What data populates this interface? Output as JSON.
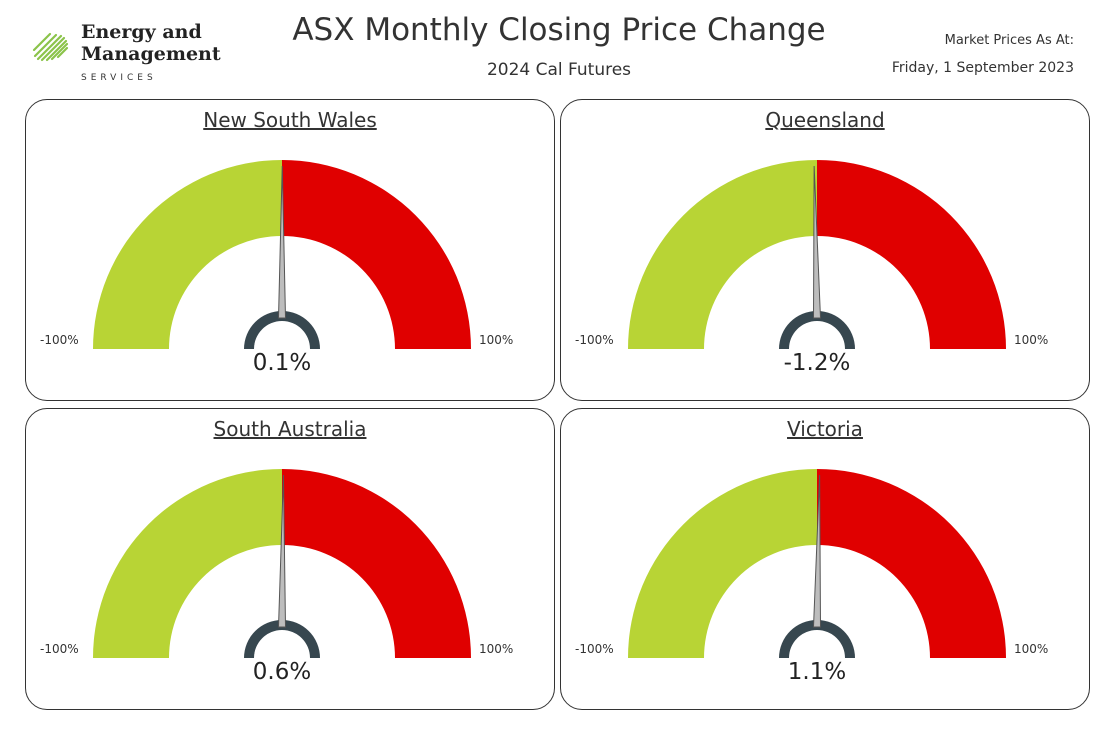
{
  "logo": {
    "line1": "Energy and",
    "line2": "Management",
    "line3": "SERVICES",
    "mark_color": "#8bc34a"
  },
  "header": {
    "title": "ASX Monthly Closing Price Change",
    "subtitle": "2024 Cal Futures",
    "as_at_label": "Market Prices As At:",
    "as_at_date": "Friday, 1 September 2023"
  },
  "colors": {
    "negative_segment": "#b8d435",
    "positive_segment": "#e00000",
    "needle": "#555555",
    "hub": "#37474f",
    "border": "#333333"
  },
  "chart_data": [
    {
      "type": "gauge",
      "title": "New South Wales",
      "value": 0.1,
      "value_label": "0.1%",
      "min": -100,
      "max": 100,
      "min_label": "-100%",
      "max_label": "100%"
    },
    {
      "type": "gauge",
      "title": "Queensland",
      "value": -1.2,
      "value_label": "-1.2%",
      "min": -100,
      "max": 100,
      "min_label": "-100%",
      "max_label": "100%"
    },
    {
      "type": "gauge",
      "title": "South Australia",
      "value": 0.6,
      "value_label": "0.6%",
      "min": -100,
      "max": 100,
      "min_label": "-100%",
      "max_label": "100%"
    },
    {
      "type": "gauge",
      "title": "Victoria",
      "value": 1.1,
      "value_label": "1.1%",
      "min": -100,
      "max": 100,
      "min_label": "-100%",
      "max_label": "100%"
    }
  ]
}
